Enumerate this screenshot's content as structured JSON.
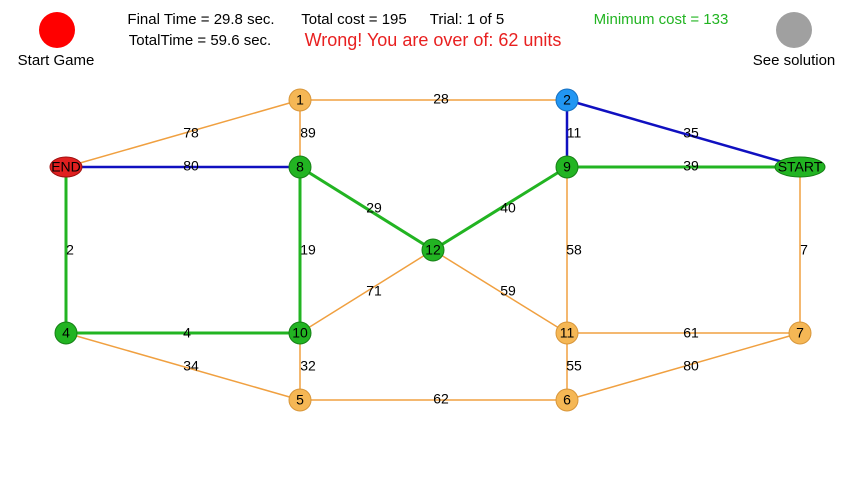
{
  "header": {
    "start_button": "Start Game",
    "final_time": "Final Time = 29.8 sec.",
    "total_cost": "Total cost = 195",
    "trial": "Trial: 1 of 5",
    "minimum_cost": "Minimum cost = 133",
    "total_time": "TotalTime = 59.6 sec.",
    "message": "Wrong! You are over of: 62 units",
    "solution_button": "See solution"
  },
  "nodes": [
    {
      "label": "END"
    },
    {
      "label": "1"
    },
    {
      "label": "2"
    },
    {
      "label": "START"
    },
    {
      "label": "8"
    },
    {
      "label": "9"
    },
    {
      "label": "12"
    },
    {
      "label": "4"
    },
    {
      "label": "10"
    },
    {
      "label": "11"
    },
    {
      "label": "7"
    },
    {
      "label": "5"
    },
    {
      "label": "6"
    }
  ],
  "edges": [
    {
      "weight": 78
    },
    {
      "weight": 28
    },
    {
      "weight": 89
    },
    {
      "weight": 11
    },
    {
      "weight": 35
    },
    {
      "weight": 80
    },
    {
      "weight": 39
    },
    {
      "weight": 29
    },
    {
      "weight": 40
    },
    {
      "weight": 2
    },
    {
      "weight": 19
    },
    {
      "weight": 58
    },
    {
      "weight": 7
    },
    {
      "weight": 71
    },
    {
      "weight": 59
    },
    {
      "weight": 4
    },
    {
      "weight": 61
    },
    {
      "weight": 80
    },
    {
      "weight": 34
    },
    {
      "weight": 32
    },
    {
      "weight": 55
    },
    {
      "weight": 62
    }
  ]
}
